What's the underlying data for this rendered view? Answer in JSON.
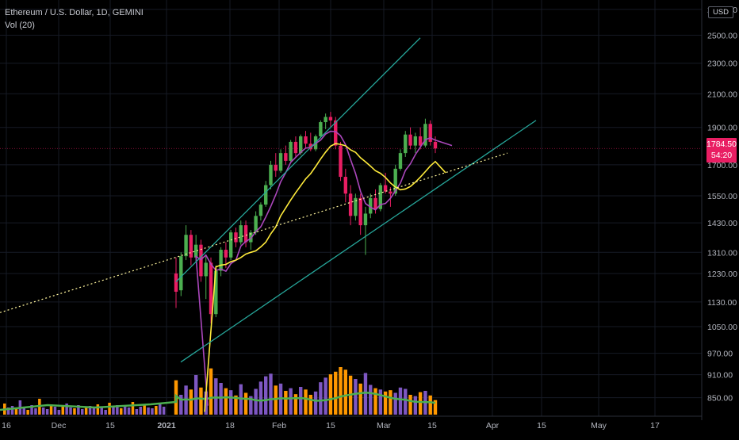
{
  "header": {
    "symbol_line": "Ethereum / U.S. Dollar, 1D, GEMINI",
    "indicator_line": "Vol (20)"
  },
  "price_axis": {
    "currency": "USD",
    "current_price": "1784.50",
    "countdown": "54:20",
    "tick_labels": [
      "2700.00",
      "2500.00",
      "2300.00",
      "2100.00",
      "1900.00",
      "1700.00",
      "1550.00",
      "1430.00",
      "1310.00",
      "1230.00",
      "1130.00",
      "1050.00",
      "970.00",
      "910.00",
      "850.00"
    ]
  },
  "time_axis": {
    "tick_labels": [
      "16",
      "Dec",
      "15",
      "2021",
      "18",
      "Feb",
      "15",
      "Mar",
      "15",
      "Apr",
      "15",
      "May",
      "17"
    ]
  },
  "colors": {
    "background": "#000000",
    "candle_up": "#26a69a",
    "candle_up_body": "#4caf50",
    "candle_down": "#e91e63",
    "volume_up": "#7e57c2",
    "volume_down": "#ff9800",
    "volume_ma": "#4caf50",
    "ma_fast": "#ab47bc",
    "ma_slow": "#ffeb3b",
    "trendline": "#26a69a",
    "dotted_trend": "#fff59d",
    "price_label_bg": "#e91e63"
  },
  "chart_data": {
    "type": "candlestick",
    "title": "Ethereum / U.S. Dollar, 1D, GEMINI",
    "y_scale": "log",
    "ylim": [
      810,
      2750
    ],
    "grid": true,
    "x_range": [
      "2020-11-16",
      "2021-05-24"
    ],
    "last_price": 1784.5,
    "candles_ohlc": [
      [
        1230,
        1290,
        1110,
        1165
      ],
      [
        1170,
        1310,
        1150,
        1295
      ],
      [
        1295,
        1420,
        1280,
        1380
      ],
      [
        1380,
        1400,
        1260,
        1290
      ],
      [
        1290,
        1380,
        1270,
        1340
      ],
      [
        1340,
        1360,
        1200,
        1220
      ],
      [
        1220,
        1300,
        1140,
        1270
      ],
      [
        1270,
        1290,
        1060,
        1090
      ],
      [
        1090,
        1260,
        1080,
        1240
      ],
      [
        1240,
        1330,
        1220,
        1320
      ],
      [
        1320,
        1350,
        1250,
        1290
      ],
      [
        1290,
        1400,
        1280,
        1390
      ],
      [
        1390,
        1410,
        1330,
        1350
      ],
      [
        1350,
        1440,
        1340,
        1420
      ],
      [
        1420,
        1440,
        1330,
        1350
      ],
      [
        1350,
        1400,
        1320,
        1390
      ],
      [
        1390,
        1480,
        1380,
        1460
      ],
      [
        1460,
        1520,
        1440,
        1510
      ],
      [
        1510,
        1620,
        1500,
        1600
      ],
      [
        1600,
        1720,
        1580,
        1700
      ],
      [
        1700,
        1760,
        1640,
        1670
      ],
      [
        1670,
        1780,
        1660,
        1760
      ],
      [
        1760,
        1800,
        1700,
        1720
      ],
      [
        1720,
        1830,
        1710,
        1820
      ],
      [
        1820,
        1850,
        1740,
        1760
      ],
      [
        1760,
        1860,
        1750,
        1850
      ],
      [
        1850,
        1880,
        1790,
        1810
      ],
      [
        1810,
        1870,
        1770,
        1780
      ],
      [
        1780,
        1860,
        1770,
        1850
      ],
      [
        1850,
        1940,
        1840,
        1930
      ],
      [
        1930,
        1980,
        1890,
        1960
      ],
      [
        1960,
        1990,
        1900,
        1940
      ],
      [
        1940,
        1960,
        1780,
        1800
      ],
      [
        1800,
        1820,
        1620,
        1640
      ],
      [
        1640,
        1680,
        1520,
        1560
      ],
      [
        1560,
        1600,
        1420,
        1460
      ],
      [
        1460,
        1560,
        1440,
        1540
      ],
      [
        1540,
        1560,
        1380,
        1420
      ],
      [
        1420,
        1500,
        1300,
        1470
      ],
      [
        1470,
        1560,
        1450,
        1540
      ],
      [
        1540,
        1580,
        1470,
        1490
      ],
      [
        1490,
        1610,
        1480,
        1600
      ],
      [
        1600,
        1660,
        1560,
        1570
      ],
      [
        1570,
        1590,
        1500,
        1560
      ],
      [
        1560,
        1700,
        1550,
        1680
      ],
      [
        1680,
        1780,
        1670,
        1760
      ],
      [
        1760,
        1880,
        1740,
        1860
      ],
      [
        1860,
        1900,
        1780,
        1800
      ],
      [
        1800,
        1870,
        1760,
        1850
      ],
      [
        1850,
        1900,
        1780,
        1800
      ],
      [
        1800,
        1950,
        1790,
        1920
      ],
      [
        1920,
        1940,
        1800,
        1820
      ],
      [
        1820,
        1850,
        1760,
        1784.5
      ]
    ],
    "volume": [
      52,
      30,
      44,
      38,
      60,
      41,
      35,
      70,
      55,
      48,
      40,
      37,
      29,
      46,
      33,
      28,
      39,
      50,
      58,
      62,
      44,
      47,
      36,
      40,
      31,
      42,
      38,
      30,
      35,
      49,
      56,
      61,
      65,
      72,
      68,
      59,
      54,
      47,
      63,
      45,
      40,
      38,
      35,
      37,
      33,
      41,
      39,
      30,
      28,
      34,
      36,
      29,
      22
    ]
  }
}
